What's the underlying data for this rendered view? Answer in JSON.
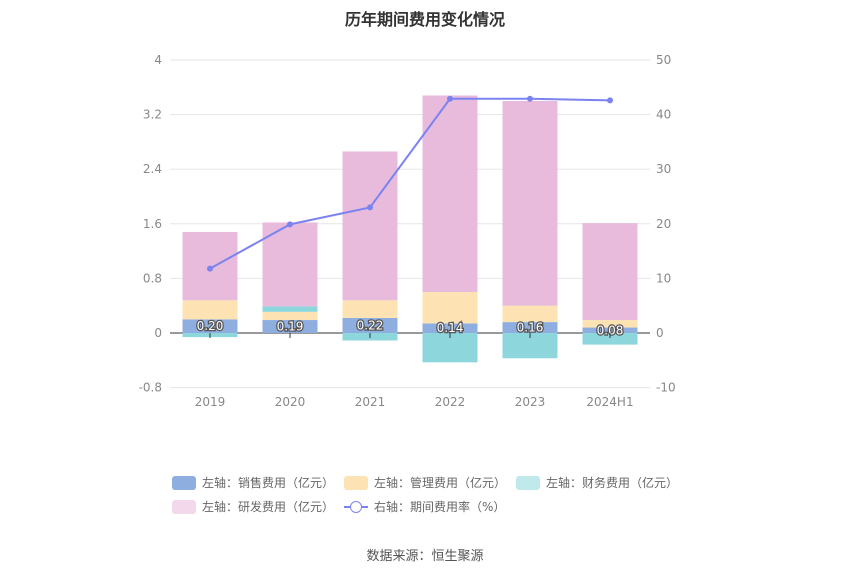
{
  "chart_data": {
    "type": "bar",
    "title": "历年期间费用变化情况",
    "categories": [
      "2019",
      "2020",
      "2021",
      "2022",
      "2023",
      "2024H1"
    ],
    "y_left": {
      "ticks": [
        "4",
        "3.2",
        "2.4",
        "1.6",
        "0.8",
        "0",
        "-0.8"
      ],
      "ylim": [
        -0.8,
        4
      ]
    },
    "y_right": {
      "ticks": [
        "50",
        "40",
        "30",
        "20",
        "10",
        "0",
        "-10"
      ],
      "ylim": [
        -10,
        50
      ]
    },
    "series": [
      {
        "name": "左轴：销售费用（亿元）",
        "type": "bar",
        "axis": "left",
        "color": "#8eaee0",
        "values": [
          0.2,
          0.19,
          0.22,
          0.14,
          0.16,
          0.08
        ]
      },
      {
        "name": "左轴：管理费用（亿元）",
        "type": "bar",
        "axis": "left",
        "color": "#fde3b3",
        "values": [
          0.28,
          0.12,
          0.26,
          0.46,
          0.24,
          0.11
        ]
      },
      {
        "name": "左轴：财务费用（亿元）",
        "type": "bar",
        "axis": "left",
        "color": "#8dd7dc",
        "values": [
          -0.06,
          0.08,
          -0.11,
          -0.43,
          -0.37,
          -0.17
        ]
      },
      {
        "name": "左轴：研发费用（亿元）",
        "type": "bar",
        "axis": "left",
        "color": "#e8bbdc",
        "values": [
          1.0,
          1.23,
          2.18,
          2.88,
          3.0,
          1.42
        ]
      },
      {
        "name": "右轴：期间费用率（%）",
        "type": "line",
        "axis": "right",
        "color": "#7b83f0",
        "values": [
          11.8,
          19.9,
          23.0,
          42.9,
          42.9,
          42.6
        ]
      }
    ],
    "data_labels": [
      "0.20",
      "0.19",
      "0.22",
      "0.14",
      "0.16",
      "0.08"
    ],
    "legend_position": "bottom",
    "grid": true
  },
  "source": "数据来源：恒生聚源"
}
